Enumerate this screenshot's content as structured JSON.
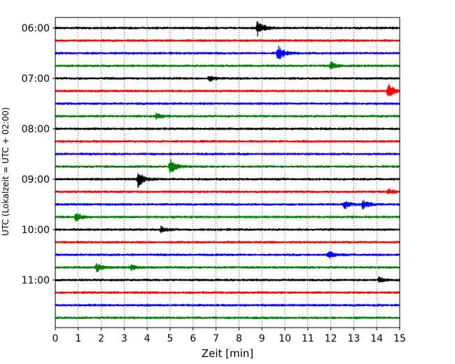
{
  "chart_data": {
    "type": "line",
    "xlabel": "Zeit  [min]",
    "ylabel": "UTC (Lokalzeit = UTC + 02:00)",
    "xlim": [
      0,
      15
    ],
    "x_ticks": [
      "0",
      "1",
      "2",
      "3",
      "4",
      "5",
      "6",
      "7",
      "8",
      "9",
      "10",
      "11",
      "12",
      "13",
      "14",
      "15"
    ],
    "y_tick_labels": [
      "06:00",
      "07:00",
      "08:00",
      "09:00",
      "10:00",
      "11:00"
    ],
    "row_interval_minutes": 15,
    "first_row_time": "06:00",
    "last_row_time": "11:45",
    "row_count": 24,
    "vertical_grid": "dotted",
    "color_cycle": [
      "#000000",
      "#ff0000",
      "#0000ff",
      "#008000"
    ],
    "events": [
      {
        "row": "06:00",
        "minute": 8.8,
        "amplitude": "large"
      },
      {
        "row": "06:30",
        "minute": 9.7,
        "amplitude": "large"
      },
      {
        "row": "06:45",
        "minute": 12.0,
        "amplitude": "medium"
      },
      {
        "row": "07:00",
        "minute": 6.7,
        "amplitude": "small"
      },
      {
        "row": "07:15",
        "minute": 14.5,
        "amplitude": "large"
      },
      {
        "row": "07:45",
        "minute": 4.4,
        "amplitude": "small"
      },
      {
        "row": "08:45",
        "minute": 5.0,
        "amplitude": "large"
      },
      {
        "row": "09:00",
        "minute": 3.6,
        "amplitude": "large"
      },
      {
        "row": "09:15",
        "minute": 14.5,
        "amplitude": "small"
      },
      {
        "row": "09:30",
        "minute": 12.6,
        "amplitude": "medium"
      },
      {
        "row": "09:30",
        "minute": 13.4,
        "amplitude": "medium"
      },
      {
        "row": "09:45",
        "minute": 0.9,
        "amplitude": "medium"
      },
      {
        "row": "10:00",
        "minute": 4.6,
        "amplitude": "small"
      },
      {
        "row": "10:30",
        "minute": 11.9,
        "amplitude": "medium"
      },
      {
        "row": "10:45",
        "minute": 1.8,
        "amplitude": "medium"
      },
      {
        "row": "10:45",
        "minute": 3.3,
        "amplitude": "small"
      },
      {
        "row": "11:00",
        "minute": 14.1,
        "amplitude": "small"
      }
    ]
  }
}
